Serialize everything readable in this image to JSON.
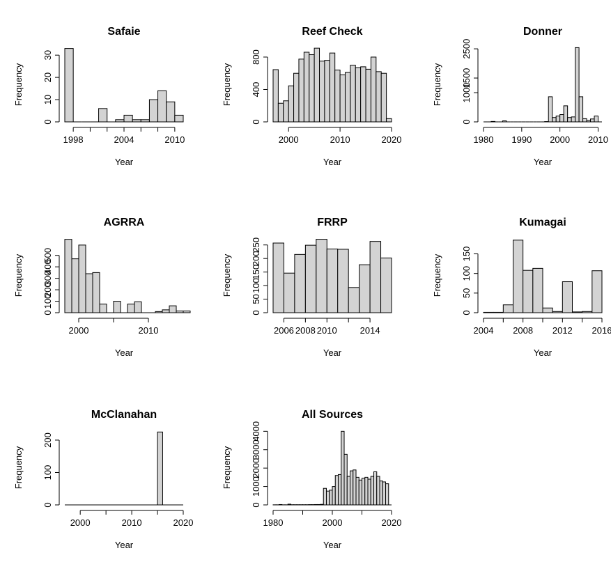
{
  "chart_data": [
    {
      "type": "bar",
      "title": "Safaie",
      "xlabel": "Year",
      "ylabel": "Frequency",
      "xlim": [
        1997,
        2011
      ],
      "ylim": [
        0,
        33.5
      ],
      "xticks": [
        {
          "v": 1998,
          "label": "1998"
        },
        {
          "v": 2000,
          "label": ""
        },
        {
          "v": 2002,
          "label": ""
        },
        {
          "v": 2004,
          "label": "2004"
        },
        {
          "v": 2006,
          "label": ""
        },
        {
          "v": 2008,
          "label": ""
        },
        {
          "v": 2010,
          "label": "2010"
        }
      ],
      "yticks": [
        0,
        10,
        20,
        30
      ],
      "bins": [
        [
          1997,
          1998,
          33
        ],
        [
          1998,
          1999,
          0
        ],
        [
          1999,
          2000,
          0
        ],
        [
          2000,
          2001,
          0
        ],
        [
          2001,
          2002,
          6
        ],
        [
          2002,
          2003,
          0
        ],
        [
          2003,
          2004,
          1
        ],
        [
          2004,
          2005,
          3
        ],
        [
          2005,
          2006,
          1
        ],
        [
          2006,
          2007,
          1
        ],
        [
          2007,
          2008,
          10
        ],
        [
          2008,
          2009,
          14
        ],
        [
          2009,
          2010,
          9
        ],
        [
          2010,
          2011,
          3
        ]
      ]
    },
    {
      "type": "bar",
      "title": "Reef Check",
      "xlabel": "Year",
      "ylabel": "Frequency",
      "xlim": [
        1997,
        2020
      ],
      "ylim": [
        0,
        920
      ],
      "xticks": [
        {
          "v": 2000,
          "label": "2000"
        },
        {
          "v": 2010,
          "label": "2010"
        },
        {
          "v": 2020,
          "label": "2020"
        }
      ],
      "yticks": [
        0,
        400,
        800
      ],
      "bins": [
        [
          1997,
          1998,
          645
        ],
        [
          1998,
          1999,
          230
        ],
        [
          1999,
          2000,
          260
        ],
        [
          2000,
          2001,
          445
        ],
        [
          2001,
          2002,
          600
        ],
        [
          2002,
          2003,
          775
        ],
        [
          2003,
          2004,
          860
        ],
        [
          2004,
          2005,
          830
        ],
        [
          2005,
          2006,
          910
        ],
        [
          2006,
          2007,
          750
        ],
        [
          2007,
          2008,
          760
        ],
        [
          2008,
          2009,
          850
        ],
        [
          2009,
          2010,
          640
        ],
        [
          2010,
          2011,
          580
        ],
        [
          2011,
          2012,
          610
        ],
        [
          2012,
          2013,
          700
        ],
        [
          2013,
          2014,
          670
        ],
        [
          2014,
          2015,
          680
        ],
        [
          2015,
          2016,
          650
        ],
        [
          2016,
          2017,
          800
        ],
        [
          2017,
          2018,
          620
        ],
        [
          2018,
          2019,
          600
        ],
        [
          2019,
          2020,
          40
        ]
      ]
    },
    {
      "type": "bar",
      "title": "Donner",
      "xlabel": "Year",
      "ylabel": "Frequency",
      "xlim": [
        1980,
        2011
      ],
      "ylim": [
        0,
        2550
      ],
      "xticks": [
        {
          "v": 1980,
          "label": "1980"
        },
        {
          "v": 1990,
          "label": "1990"
        },
        {
          "v": 2000,
          "label": "2000"
        },
        {
          "v": 2010,
          "label": "2010"
        }
      ],
      "yticks": [
        0,
        1000,
        1500,
        2500
      ],
      "bins": [
        [
          1980,
          1981,
          0
        ],
        [
          1981,
          1982,
          0
        ],
        [
          1982,
          1983,
          15
        ],
        [
          1983,
          1984,
          0
        ],
        [
          1984,
          1985,
          0
        ],
        [
          1985,
          1986,
          35
        ],
        [
          1986,
          1987,
          0
        ],
        [
          1987,
          1988,
          0
        ],
        [
          1988,
          1989,
          0
        ],
        [
          1989,
          1990,
          0
        ],
        [
          1990,
          1991,
          0
        ],
        [
          1991,
          1992,
          0
        ],
        [
          1992,
          1993,
          0
        ],
        [
          1993,
          1994,
          0
        ],
        [
          1994,
          1995,
          0
        ],
        [
          1995,
          1996,
          0
        ],
        [
          1996,
          1997,
          10
        ],
        [
          1997,
          1998,
          860
        ],
        [
          1998,
          1999,
          150
        ],
        [
          1999,
          2000,
          200
        ],
        [
          2000,
          2001,
          250
        ],
        [
          2001,
          2002,
          550
        ],
        [
          2002,
          2003,
          150
        ],
        [
          2003,
          2004,
          170
        ],
        [
          2004,
          2005,
          2540
        ],
        [
          2005,
          2006,
          860
        ],
        [
          2006,
          2007,
          110
        ],
        [
          2007,
          2008,
          50
        ],
        [
          2008,
          2009,
          100
        ],
        [
          2009,
          2010,
          200
        ],
        [
          2010,
          2011,
          0
        ]
      ]
    },
    {
      "type": "bar",
      "title": "AGRRA",
      "xlabel": "Year",
      "ylabel": "Frequency",
      "xlim": [
        1998,
        2015
      ],
      "ylim": [
        0,
        650
      ],
      "xticks": [
        {
          "v": 2000,
          "label": "2000"
        },
        {
          "v": 2005,
          "label": ""
        },
        {
          "v": 2010,
          "label": "2010"
        }
      ],
      "yticks": [
        0,
        100,
        200,
        300,
        400,
        500
      ],
      "bins": [
        [
          1998,
          1999,
          640
        ],
        [
          1999,
          2000,
          470
        ],
        [
          2000,
          2001,
          590
        ],
        [
          2001,
          2002,
          340
        ],
        [
          2002,
          2003,
          350
        ],
        [
          2003,
          2004,
          75
        ],
        [
          2004,
          2005,
          0
        ],
        [
          2005,
          2006,
          100
        ],
        [
          2006,
          2007,
          0
        ],
        [
          2007,
          2008,
          75
        ],
        [
          2008,
          2009,
          95
        ],
        [
          2009,
          2010,
          0
        ],
        [
          2010,
          2011,
          0
        ],
        [
          2011,
          2012,
          10
        ],
        [
          2012,
          2013,
          25
        ],
        [
          2013,
          2014,
          60
        ],
        [
          2014,
          2015,
          15
        ],
        [
          2015,
          2016,
          15
        ]
      ]
    },
    {
      "type": "bar",
      "title": "FRRP",
      "xlabel": "Year",
      "ylabel": "Frequency",
      "xlim": [
        2005,
        2016
      ],
      "ylim": [
        0,
        275
      ],
      "xticks": [
        {
          "v": 2006,
          "label": "2006"
        },
        {
          "v": 2008,
          "label": "2008"
        },
        {
          "v": 2010,
          "label": "2010"
        },
        {
          "v": 2012,
          "label": ""
        },
        {
          "v": 2014,
          "label": "2014"
        }
      ],
      "yticks": [
        0,
        50,
        100,
        150,
        200,
        250
      ],
      "bins": [
        [
          2005,
          2006,
          257
        ],
        [
          2006,
          2007,
          146
        ],
        [
          2007,
          2008,
          215
        ],
        [
          2008,
          2009,
          249
        ],
        [
          2009,
          2010,
          271
        ],
        [
          2010,
          2011,
          235
        ],
        [
          2011,
          2012,
          234
        ],
        [
          2012,
          2013,
          93
        ],
        [
          2013,
          2014,
          177
        ],
        [
          2014,
          2015,
          263
        ],
        [
          2015,
          2016,
          202
        ]
      ]
    },
    {
      "type": "bar",
      "title": "Kumagai",
      "xlabel": "Year",
      "ylabel": "Frequency",
      "xlim": [
        2004,
        2016
      ],
      "ylim": [
        0,
        190
      ],
      "xticks": [
        {
          "v": 2004,
          "label": "2004"
        },
        {
          "v": 2006,
          "label": ""
        },
        {
          "v": 2008,
          "label": "2008"
        },
        {
          "v": 2010,
          "label": ""
        },
        {
          "v": 2012,
          "label": "2012"
        },
        {
          "v": 2014,
          "label": ""
        },
        {
          "v": 2016,
          "label": "2016"
        }
      ],
      "yticks": [
        0,
        50,
        100,
        150
      ],
      "bins": [
        [
          2004,
          2005,
          1
        ],
        [
          2005,
          2006,
          1
        ],
        [
          2006,
          2007,
          20
        ],
        [
          2007,
          2008,
          185
        ],
        [
          2008,
          2009,
          108
        ],
        [
          2009,
          2010,
          113
        ],
        [
          2010,
          2011,
          12
        ],
        [
          2011,
          2012,
          3
        ],
        [
          2012,
          2013,
          79
        ],
        [
          2013,
          2014,
          2
        ],
        [
          2014,
          2015,
          3
        ],
        [
          2015,
          2016,
          107
        ]
      ]
    },
    {
      "type": "bar",
      "title": "McClanahan",
      "xlabel": "Year",
      "ylabel": "Frequency",
      "xlim": [
        1997,
        2020
      ],
      "ylim": [
        0,
        230
      ],
      "xticks": [
        {
          "v": 2000,
          "label": "2000"
        },
        {
          "v": 2005,
          "label": ""
        },
        {
          "v": 2010,
          "label": "2010"
        },
        {
          "v": 2015,
          "label": ""
        },
        {
          "v": 2020,
          "label": "2020"
        }
      ],
      "yticks": [
        0,
        100,
        200
      ],
      "bins": [
        [
          1997,
          2015,
          0
        ],
        [
          2015,
          2016,
          225
        ],
        [
          2016,
          2020,
          0
        ]
      ]
    },
    {
      "type": "bar",
      "title": "All Sources",
      "xlabel": "Year",
      "ylabel": "Frequency",
      "xlim": [
        1980,
        2020
      ],
      "ylim": [
        0,
        4050
      ],
      "xticks": [
        {
          "v": 1980,
          "label": "1980"
        },
        {
          "v": 1990,
          "label": ""
        },
        {
          "v": 2000,
          "label": "2000"
        },
        {
          "v": 2010,
          "label": ""
        },
        {
          "v": 2020,
          "label": "2020"
        }
      ],
      "yticks": [
        0,
        1000,
        2000,
        3000,
        4000
      ],
      "bins": [
        [
          1980,
          1981,
          5
        ],
        [
          1981,
          1982,
          5
        ],
        [
          1982,
          1983,
          20
        ],
        [
          1983,
          1984,
          5
        ],
        [
          1984,
          1985,
          5
        ],
        [
          1985,
          1986,
          40
        ],
        [
          1986,
          1987,
          10
        ],
        [
          1987,
          1988,
          10
        ],
        [
          1988,
          1989,
          10
        ],
        [
          1989,
          1990,
          10
        ],
        [
          1990,
          1991,
          10
        ],
        [
          1991,
          1992,
          10
        ],
        [
          1992,
          1993,
          15
        ],
        [
          1993,
          1994,
          15
        ],
        [
          1994,
          1995,
          20
        ],
        [
          1995,
          1996,
          20
        ],
        [
          1996,
          1997,
          30
        ],
        [
          1997,
          1998,
          900
        ],
        [
          1998,
          1999,
          750
        ],
        [
          1999,
          2000,
          800
        ],
        [
          2000,
          2001,
          1000
        ],
        [
          2001,
          2002,
          1600
        ],
        [
          2002,
          2003,
          1650
        ],
        [
          2003,
          2004,
          4000
        ],
        [
          2004,
          2005,
          2750
        ],
        [
          2005,
          2006,
          1550
        ],
        [
          2006,
          2007,
          1850
        ],
        [
          2007,
          2008,
          1900
        ],
        [
          2008,
          2009,
          1500
        ],
        [
          2009,
          2010,
          1350
        ],
        [
          2010,
          2011,
          1450
        ],
        [
          2011,
          2012,
          1500
        ],
        [
          2012,
          2013,
          1400
        ],
        [
          2013,
          2014,
          1550
        ],
        [
          2014,
          2015,
          1800
        ],
        [
          2015,
          2016,
          1550
        ],
        [
          2016,
          2017,
          1300
        ],
        [
          2017,
          2018,
          1250
        ],
        [
          2018,
          2019,
          1150
        ],
        [
          2019,
          2020,
          0
        ]
      ]
    }
  ]
}
